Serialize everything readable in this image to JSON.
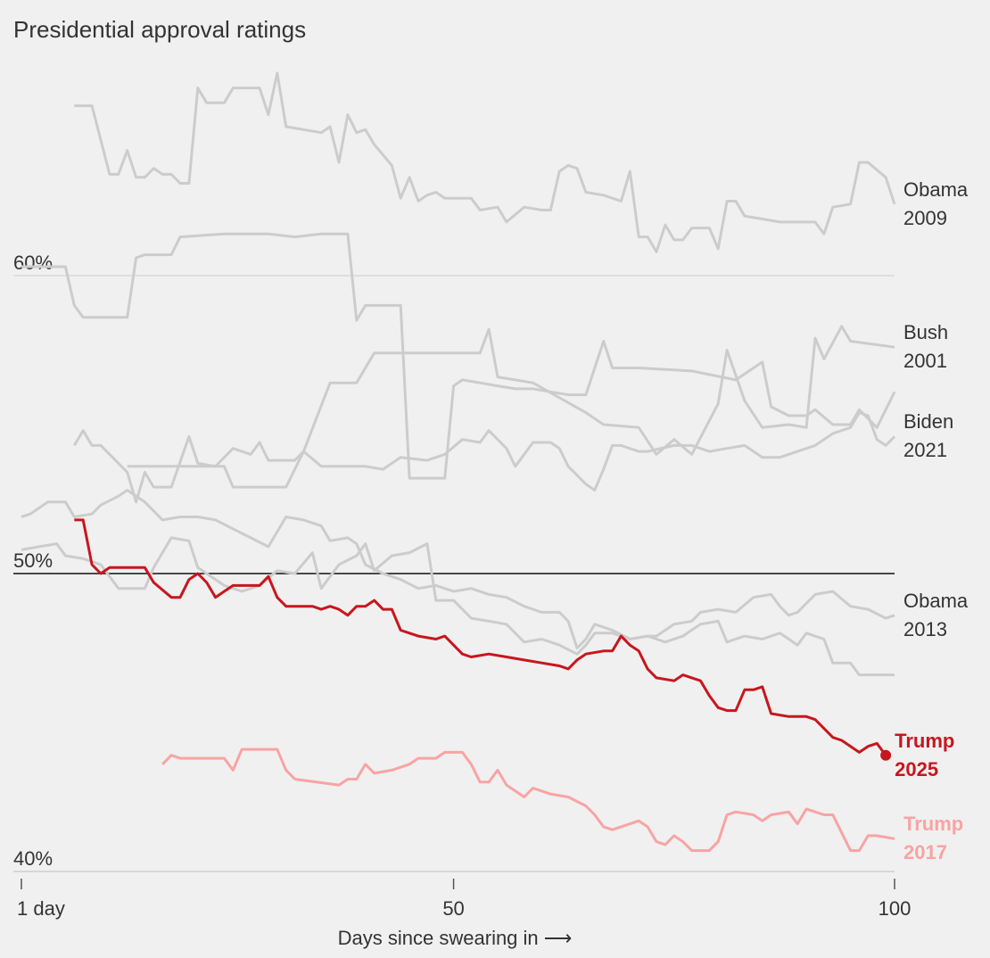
{
  "chart_data": {
    "type": "line",
    "title": "Presidential approval ratings",
    "x_label": "Days since swearing in ⟶",
    "xlim": [
      1,
      100
    ],
    "xticks": [
      {
        "value": 1,
        "label": "1 day"
      },
      50,
      100
    ],
    "ylim": [
      40,
      68
    ],
    "yticks": [
      {
        "value": 40,
        "label": "40%"
      },
      {
        "value": 50,
        "label": "50%"
      },
      {
        "value": 60,
        "label": "60%"
      }
    ],
    "emphasized_ytick": 50,
    "series": [
      {
        "name": "Obama 2009",
        "color": "#cccccc",
        "label_color": "#333333",
        "x": [
          7,
          9,
          11,
          12,
          13,
          14,
          15,
          16,
          17,
          18,
          19,
          20,
          21,
          22,
          24,
          25,
          28,
          29,
          30,
          31,
          33,
          35,
          36,
          37,
          38,
          39,
          40,
          41,
          43,
          44,
          45,
          46,
          47,
          48,
          49,
          50,
          52,
          53,
          55,
          56,
          58,
          60,
          61,
          62,
          63,
          64,
          65,
          67,
          69,
          70,
          71,
          72,
          73,
          74,
          75,
          76,
          77,
          79,
          80,
          81,
          82,
          83,
          85,
          87,
          90,
          91,
          92,
          93,
          95,
          96,
          97,
          99,
          100
        ],
        "values": [
          65.7,
          65.7,
          63.4,
          63.4,
          64.2,
          63.3,
          63.3,
          63.6,
          63.4,
          63.4,
          63.1,
          63.1,
          66.3,
          65.8,
          65.8,
          66.3,
          66.3,
          65.4,
          66.8,
          65.0,
          64.9,
          64.8,
          65.0,
          63.8,
          65.4,
          64.8,
          64.9,
          64.4,
          63.7,
          62.6,
          63.3,
          62.5,
          62.7,
          62.8,
          62.6,
          62.6,
          62.6,
          62.2,
          62.3,
          61.8,
          62.3,
          62.2,
          62.2,
          63.5,
          63.7,
          63.6,
          62.8,
          62.7,
          62.5,
          63.5,
          61.3,
          61.3,
          60.8,
          61.7,
          61.2,
          61.2,
          61.6,
          61.6,
          60.9,
          62.5,
          62.5,
          62.0,
          61.9,
          61.8,
          61.8,
          61.8,
          61.4,
          62.3,
          62.4,
          63.8,
          63.8,
          63.3,
          62.4
        ]
      },
      {
        "color": "#cccccc",
        "x": [
          1,
          6,
          7,
          8,
          9,
          13,
          14,
          15,
          18,
          19,
          24,
          29,
          32,
          35,
          38,
          39,
          40,
          44,
          45,
          47,
          49,
          50,
          51,
          53,
          55,
          57,
          59,
          61,
          63,
          65,
          67,
          68,
          71,
          77,
          82,
          85,
          86,
          88,
          90,
          91,
          93,
          95,
          96,
          98,
          100
        ],
        "values": [
          60.3,
          60.3,
          59.0,
          58.6,
          58.6,
          58.6,
          60.6,
          60.7,
          60.7,
          61.3,
          61.4,
          61.4,
          61.3,
          61.4,
          61.4,
          58.5,
          59.0,
          59.0,
          53.2,
          53.2,
          53.2,
          56.3,
          56.5,
          56.4,
          56.3,
          56.2,
          56.2,
          56.1,
          56.0,
          56.0,
          57.8,
          56.9,
          56.9,
          56.8,
          56.5,
          57.1,
          55.6,
          55.3,
          55.3,
          55.5,
          55.0,
          55.0,
          55.5,
          54.9,
          56.1
        ]
      },
      {
        "name": "Bush 2001",
        "color": "#cccccc",
        "label_color": "#333333",
        "x": [
          13,
          24,
          25,
          31,
          33,
          36,
          39,
          41,
          53,
          54,
          55,
          59,
          65,
          67,
          71,
          73,
          75,
          77,
          80,
          81,
          83,
          85,
          88,
          90,
          91,
          92,
          94,
          95,
          100
        ],
        "values": [
          53.6,
          53.6,
          52.9,
          52.9,
          54.1,
          56.4,
          56.4,
          57.4,
          57.4,
          58.2,
          56.6,
          56.4,
          55.4,
          55.0,
          54.9,
          54.0,
          54.5,
          54.0,
          55.7,
          57.5,
          55.8,
          54.9,
          55.0,
          54.9,
          57.9,
          57.2,
          58.3,
          57.8,
          57.6
        ]
      },
      {
        "name": "Biden 2021",
        "color": "#cccccc",
        "label_color": "#333333",
        "x": [
          7,
          8,
          9,
          10,
          12,
          13,
          14,
          15,
          16,
          18,
          20,
          21,
          23,
          25,
          27,
          28,
          29,
          32,
          33,
          35,
          40,
          42,
          44,
          47,
          49,
          51,
          53,
          54,
          56,
          57,
          59,
          61,
          62,
          63,
          65,
          66,
          67,
          68,
          69,
          71,
          72,
          75,
          77,
          79,
          81,
          83,
          85,
          87,
          89,
          91,
          93,
          95,
          96,
          97,
          98,
          99,
          100
        ],
        "values": [
          54.3,
          54.8,
          54.3,
          54.3,
          53.7,
          53.4,
          52.4,
          53.4,
          52.9,
          52.9,
          54.6,
          53.7,
          53.6,
          54.2,
          54.0,
          54.4,
          53.8,
          53.8,
          54.1,
          53.6,
          53.6,
          53.5,
          53.9,
          53.8,
          54.0,
          54.5,
          54.4,
          54.8,
          54.2,
          53.6,
          54.4,
          54.4,
          54.2,
          53.6,
          53.0,
          52.8,
          53.5,
          54.3,
          54.3,
          54.1,
          54.1,
          54.3,
          54.3,
          54.1,
          54.2,
          54.3,
          53.9,
          53.9,
          54.1,
          54.3,
          54.7,
          54.9,
          55.4,
          55.3,
          54.5,
          54.3,
          54.6
        ]
      },
      {
        "name": "Obama 2013",
        "color": "#cccccc",
        "label_color": "#333333",
        "x": [
          1,
          2,
          4,
          6,
          7,
          9,
          10,
          12,
          13,
          15,
          17,
          19,
          21,
          23,
          25,
          27,
          29,
          31,
          33,
          35,
          36,
          38,
          39,
          40,
          42,
          44,
          46,
          48,
          50,
          52,
          54,
          56,
          58,
          60,
          62,
          63,
          64,
          65,
          66,
          68,
          70,
          72,
          73,
          75,
          77,
          78,
          80,
          82,
          84,
          86,
          87,
          88,
          89,
          91,
          93,
          95,
          97,
          99,
          100
        ],
        "values": [
          51.9,
          52.0,
          52.4,
          52.4,
          51.9,
          52.0,
          52.3,
          52.6,
          52.8,
          52.4,
          51.8,
          51.9,
          51.9,
          51.8,
          51.5,
          51.2,
          50.9,
          51.9,
          51.8,
          51.6,
          51.1,
          51.2,
          51.0,
          50.3,
          50.0,
          49.8,
          49.5,
          49.6,
          49.4,
          49.5,
          49.3,
          49.2,
          48.9,
          48.7,
          48.7,
          48.4,
          47.5,
          47.8,
          48.3,
          48.1,
          47.8,
          47.9,
          47.9,
          48.3,
          48.4,
          48.7,
          48.8,
          48.7,
          49.2,
          49.3,
          48.9,
          48.6,
          48.7,
          49.3,
          49.4,
          48.9,
          48.8,
          48.5,
          48.6
        ]
      },
      {
        "color": "#cccccc",
        "x": [
          1,
          3,
          5,
          6,
          8,
          10,
          12,
          15,
          16,
          18,
          20,
          21,
          24,
          26,
          28,
          30,
          32,
          34,
          35,
          37,
          39,
          40,
          41,
          43,
          45,
          47,
          48,
          50,
          52,
          54,
          56,
          58,
          60,
          62,
          64,
          65,
          66,
          68,
          70,
          72,
          74,
          76,
          78,
          80,
          81,
          83,
          85,
          87,
          89,
          90,
          92,
          93,
          95,
          96,
          98,
          100
        ],
        "values": [
          50.8,
          50.9,
          51.0,
          50.6,
          50.5,
          50.3,
          49.5,
          49.5,
          50.2,
          51.2,
          51.1,
          50.2,
          49.6,
          49.4,
          49.6,
          50.1,
          50.0,
          50.7,
          49.5,
          50.3,
          50.6,
          51.0,
          50.1,
          50.6,
          50.7,
          51.0,
          49.1,
          49.1,
          48.5,
          48.4,
          48.3,
          47.7,
          47.8,
          47.6,
          47.3,
          47.6,
          48.0,
          48.0,
          47.8,
          47.9,
          47.7,
          47.9,
          48.3,
          48.4,
          47.7,
          47.9,
          47.8,
          48.0,
          47.6,
          48.0,
          47.8,
          47.0,
          47.0,
          46.6,
          46.6,
          46.6
        ]
      },
      {
        "name": "Trump 2017",
        "color": "#f9a3a3",
        "label_color": "#f9a3a3",
        "bold": true,
        "x": [
          17,
          18,
          19,
          24,
          25,
          26,
          30,
          31,
          32,
          37,
          38,
          39,
          40,
          41,
          43,
          45,
          46,
          48,
          49,
          51,
          52,
          53,
          54,
          55,
          56,
          57,
          58,
          59,
          60,
          61,
          63,
          65,
          66,
          67,
          68,
          70,
          71,
          72,
          73,
          74,
          75,
          76,
          77,
          79,
          80,
          81,
          82,
          84,
          85,
          86,
          88,
          89,
          90,
          92,
          93,
          94,
          95,
          96,
          97,
          98,
          100
        ],
        "values": [
          43.6,
          43.9,
          43.8,
          43.8,
          43.4,
          44.1,
          44.1,
          43.4,
          43.1,
          42.9,
          43.1,
          43.1,
          43.6,
          43.3,
          43.4,
          43.6,
          43.8,
          43.8,
          44.0,
          44.0,
          43.6,
          43.0,
          43.0,
          43.4,
          42.9,
          42.7,
          42.5,
          42.8,
          42.7,
          42.6,
          42.5,
          42.2,
          41.9,
          41.5,
          41.4,
          41.6,
          41.7,
          41.5,
          41.0,
          40.9,
          41.2,
          41.0,
          40.7,
          40.7,
          41.0,
          41.9,
          42.0,
          41.9,
          41.7,
          41.9,
          42.0,
          41.6,
          42.1,
          41.9,
          41.9,
          41.3,
          40.7,
          40.7,
          41.2,
          41.2,
          41.1
        ]
      },
      {
        "name": "Trump 2025",
        "color": "#c8161d",
        "label_color": "#c8161d",
        "bold": true,
        "end_dot": true,
        "x": [
          7,
          8,
          9,
          10,
          11,
          13,
          15,
          16,
          18,
          19,
          20,
          21,
          22,
          23,
          24,
          25,
          28,
          29,
          30,
          31,
          34,
          35,
          36,
          37,
          38,
          39,
          40,
          41,
          42,
          43,
          44,
          45,
          46,
          48,
          49,
          50,
          51,
          52,
          54,
          56,
          58,
          60,
          62,
          63,
          64,
          65,
          67,
          68,
          69,
          70,
          71,
          72,
          73,
          75,
          76,
          77,
          78,
          79,
          80,
          81,
          82,
          83,
          84,
          85,
          86,
          88,
          90,
          91,
          92,
          93,
          94,
          95,
          96,
          97,
          98,
          99
        ],
        "values": [
          51.8,
          51.8,
          50.3,
          50.0,
          50.2,
          50.2,
          50.2,
          49.7,
          49.2,
          49.2,
          49.8,
          50.0,
          49.7,
          49.2,
          49.4,
          49.6,
          49.6,
          49.9,
          49.2,
          48.9,
          48.9,
          48.8,
          48.9,
          48.8,
          48.6,
          48.9,
          48.9,
          49.1,
          48.8,
          48.8,
          48.1,
          48.0,
          47.9,
          47.8,
          47.9,
          47.6,
          47.3,
          47.2,
          47.3,
          47.2,
          47.1,
          47.0,
          46.9,
          46.8,
          47.1,
          47.3,
          47.4,
          47.4,
          47.9,
          47.6,
          47.4,
          46.8,
          46.5,
          46.4,
          46.6,
          46.5,
          46.4,
          45.9,
          45.5,
          45.4,
          45.4,
          46.1,
          46.1,
          46.2,
          45.3,
          45.2,
          45.2,
          45.1,
          44.8,
          44.5,
          44.4,
          44.2,
          44.0,
          44.2,
          44.3,
          43.9
        ]
      }
    ]
  }
}
